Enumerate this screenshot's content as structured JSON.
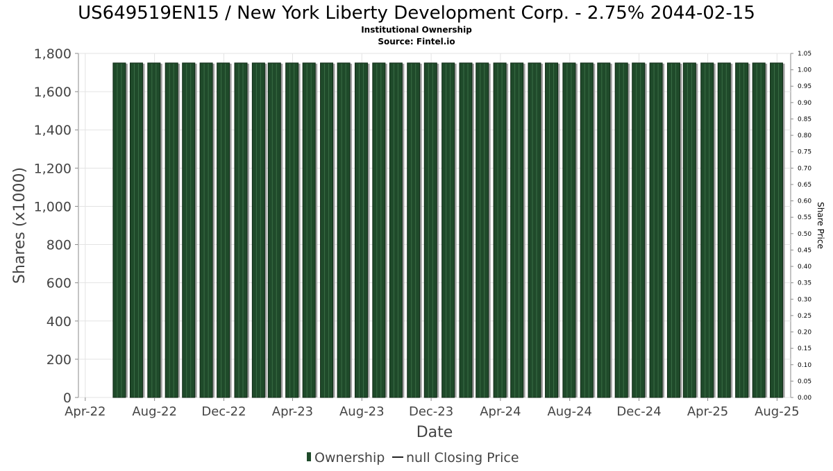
{
  "chart_data": {
    "type": "bar",
    "title": "US649519EN15 / New York Liberty Development Corp. - 2.75% 2044-02-15",
    "subtitle": "Institutional Ownership",
    "source": "Source: Fintel.io",
    "xlabel": "Date",
    "ylabel": "Shares (x1000)",
    "ylabel_right": "Share Price",
    "ylim": [
      0,
      1800
    ],
    "ylim_right": [
      0,
      1.05
    ],
    "y_ticks": [
      0,
      200,
      400,
      600,
      800,
      1000,
      1200,
      1400,
      1600,
      1800
    ],
    "y_tick_labels": [
      "0",
      "200",
      "400",
      "600",
      "800",
      "1,000",
      "1,200",
      "1,400",
      "1,600",
      "1,800"
    ],
    "y_right_ticks": [
      0,
      0.05,
      0.1,
      0.15,
      0.2,
      0.25,
      0.3,
      0.35,
      0.4,
      0.45,
      0.5,
      0.55,
      0.6,
      0.65,
      0.7,
      0.75,
      0.8,
      0.85,
      0.9,
      0.95,
      1.0,
      1.05
    ],
    "y_right_tick_labels": [
      "0.00",
      "0.05",
      "0.10",
      "0.15",
      "0.20",
      "0.25",
      "0.30",
      "0.35",
      "0.40",
      "0.45",
      "0.50",
      "0.55",
      "0.60",
      "0.65",
      "0.70",
      "0.75",
      "0.80",
      "0.85",
      "0.90",
      "0.95",
      "1.00",
      "1.05"
    ],
    "x_range": [
      "2022-03-20",
      "2025-08-25"
    ],
    "x_ticks": [
      "2022-04-01",
      "2022-08-01",
      "2022-12-01",
      "2023-04-01",
      "2023-08-01",
      "2023-12-01",
      "2024-04-01",
      "2024-08-01",
      "2024-12-01",
      "2025-04-01",
      "2025-08-01"
    ],
    "x_tick_labels": [
      "Apr-22",
      "Aug-22",
      "Dec-22",
      "Apr-23",
      "Aug-23",
      "Dec-23",
      "Apr-24",
      "Aug-24",
      "Dec-24",
      "Apr-25",
      "Aug-25"
    ],
    "series": [
      {
        "name": "Ownership",
        "color": "#1f4a2a",
        "x": [
          "2022-05-31",
          "2022-06-30",
          "2022-07-31",
          "2022-08-31",
          "2022-09-30",
          "2022-10-31",
          "2022-11-30",
          "2022-12-31",
          "2023-01-31",
          "2023-02-28",
          "2023-03-31",
          "2023-04-30",
          "2023-05-31",
          "2023-06-30",
          "2023-07-31",
          "2023-08-31",
          "2023-09-30",
          "2023-10-31",
          "2023-11-30",
          "2023-12-31",
          "2024-01-31",
          "2024-02-29",
          "2024-03-31",
          "2024-04-30",
          "2024-05-31",
          "2024-06-30",
          "2024-07-31",
          "2024-08-31",
          "2024-09-30",
          "2024-10-31",
          "2024-11-30",
          "2024-12-31",
          "2025-01-31",
          "2025-02-28",
          "2025-03-31",
          "2025-04-30",
          "2025-05-31",
          "2025-06-30",
          "2025-07-31"
        ],
        "values": [
          1750,
          1750,
          1750,
          1750,
          1750,
          1750,
          1750,
          1750,
          1750,
          1750,
          1750,
          1750,
          1750,
          1750,
          1750,
          1750,
          1750,
          1750,
          1750,
          1750,
          1750,
          1750,
          1750,
          1750,
          1750,
          1750,
          1750,
          1750,
          1750,
          1750,
          1750,
          1750,
          1750,
          1750,
          1750,
          1750,
          1750,
          1750,
          1750
        ]
      },
      {
        "name": "null Closing Price",
        "color": "#222222",
        "x": [],
        "values": []
      }
    ],
    "grid": true,
    "legend_position": "bottom-center"
  }
}
